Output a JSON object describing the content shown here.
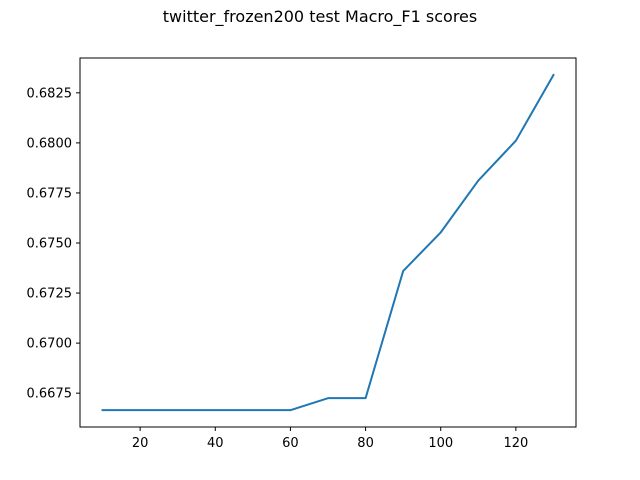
{
  "chart_data": {
    "type": "line",
    "title": "twitter_frozen200 test Macro_F1 scores",
    "xlabel": "",
    "ylabel": "",
    "x": [
      10,
      20,
      30,
      40,
      50,
      60,
      70,
      80,
      90,
      100,
      110,
      120,
      130
    ],
    "series": [
      {
        "values": [
          0.66665,
          0.66665,
          0.66665,
          0.66665,
          0.66665,
          0.66665,
          0.66725,
          0.66725,
          0.6736,
          0.67553,
          0.67812,
          0.68011,
          0.68339
        ],
        "color": "#1f77b4"
      }
    ],
    "xlim": [
      4,
      136
    ],
    "ylim": [
      0.66581,
      0.68424
    ],
    "xticks": [
      20,
      40,
      60,
      80,
      100,
      120
    ],
    "xtick_labels": [
      "20",
      "40",
      "60",
      "80",
      "100",
      "120"
    ],
    "yticks": [
      0.6675,
      0.67,
      0.6725,
      0.675,
      0.6775,
      0.68,
      0.6825
    ],
    "ytick_labels": [
      "0.6675",
      "0.6700",
      "0.6725",
      "0.6750",
      "0.6775",
      "0.6800",
      "0.6825"
    ],
    "grid": false,
    "legend": "none"
  }
}
